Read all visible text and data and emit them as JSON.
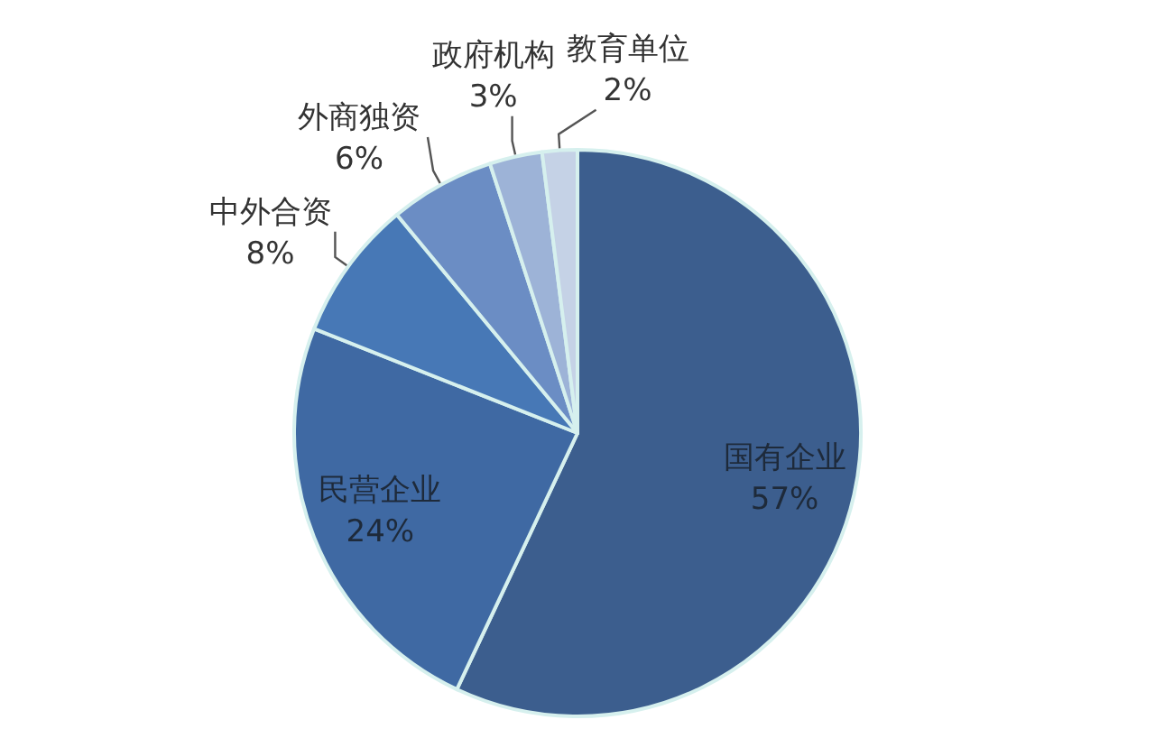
{
  "chart_data": {
    "type": "pie",
    "categories": [
      "国有企业",
      "民营企业",
      "中外合资",
      "外商独资",
      "政府机构",
      "教育单位"
    ],
    "values": [
      57,
      24,
      8,
      6,
      3,
      2
    ],
    "value_labels": [
      "57%",
      "24%",
      "8%",
      "6%",
      "3%",
      "2%"
    ],
    "colors": [
      "#3c5e8e",
      "#3f69a3",
      "#4778b6",
      "#6b8dc4",
      "#9db3d7",
      "#c5d2e6"
    ],
    "legend": false
  }
}
